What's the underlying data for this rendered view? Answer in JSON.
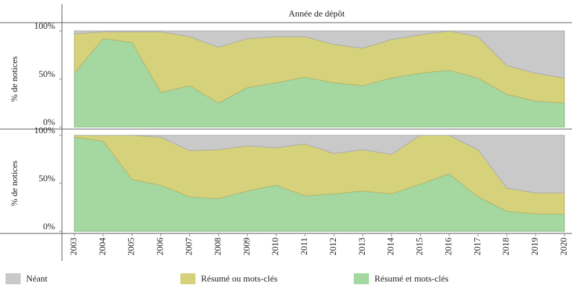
{
  "chart_data": [
    {
      "type": "stacked-area",
      "title": "Année de dépôt",
      "ylabel": "% de notices",
      "x": [
        2003,
        2004,
        2005,
        2006,
        2007,
        2008,
        2009,
        2010,
        2011,
        2012,
        2013,
        2014,
        2015,
        2016,
        2017,
        2018,
        2019,
        2020
      ],
      "xlim": [
        2003,
        2020
      ],
      "ylim": [
        0,
        100
      ],
      "yticks": [
        {
          "value": 0,
          "label": "0%"
        },
        {
          "value": 50,
          "label": "50%"
        },
        {
          "value": 100,
          "label": "100%"
        }
      ],
      "series": [
        {
          "name": "Résumé et mots-clés",
          "color": "#a4d8a0",
          "values": [
            56,
            92,
            88,
            36,
            43,
            25,
            41,
            46,
            52,
            46,
            43,
            51,
            56,
            59,
            51,
            34,
            27,
            25
          ]
        },
        {
          "name": "Résumé ou mots-clés",
          "color": "#d6d27c",
          "values": [
            41,
            7,
            11,
            63,
            51,
            58,
            51,
            48,
            42,
            40,
            39,
            40,
            40,
            41,
            43,
            30,
            29,
            26
          ]
        },
        {
          "name": "Néant",
          "color": "#c9c9c9",
          "values": [
            3,
            1,
            1,
            1,
            6,
            17,
            8,
            6,
            6,
            14,
            18,
            9,
            4,
            0,
            6,
            36,
            44,
            49
          ]
        }
      ]
    },
    {
      "type": "stacked-area",
      "ylabel": "% de notices",
      "x": [
        2003,
        2004,
        2005,
        2006,
        2007,
        2008,
        2009,
        2010,
        2011,
        2012,
        2013,
        2014,
        2015,
        2016,
        2017,
        2018,
        2019,
        2020
      ],
      "xlim": [
        2003,
        2020
      ],
      "ylim": [
        0,
        100
      ],
      "yticks": [
        {
          "value": 0,
          "label": "0%"
        },
        {
          "value": 50,
          "label": "50%"
        },
        {
          "value": 100,
          "label": "100%"
        }
      ],
      "series": [
        {
          "name": "Résumé et mots-clés",
          "color": "#a4d8a0",
          "values": [
            98,
            94,
            54,
            48,
            36,
            34,
            42,
            48,
            37,
            39,
            42,
            39,
            49,
            60,
            36,
            21,
            18,
            18
          ]
        },
        {
          "name": "Résumé ou mots-clés",
          "color": "#d6d27c",
          "values": [
            2,
            6,
            46,
            50,
            48,
            51,
            47,
            39,
            54,
            42,
            43,
            41,
            51,
            40,
            49,
            24,
            22,
            22
          ]
        },
        {
          "name": "Néant",
          "color": "#c9c9c9",
          "values": [
            0,
            0,
            0,
            2,
            16,
            15,
            11,
            13,
            9,
            19,
            15,
            20,
            0,
            0,
            15,
            55,
            60,
            60
          ]
        }
      ]
    }
  ]
}
